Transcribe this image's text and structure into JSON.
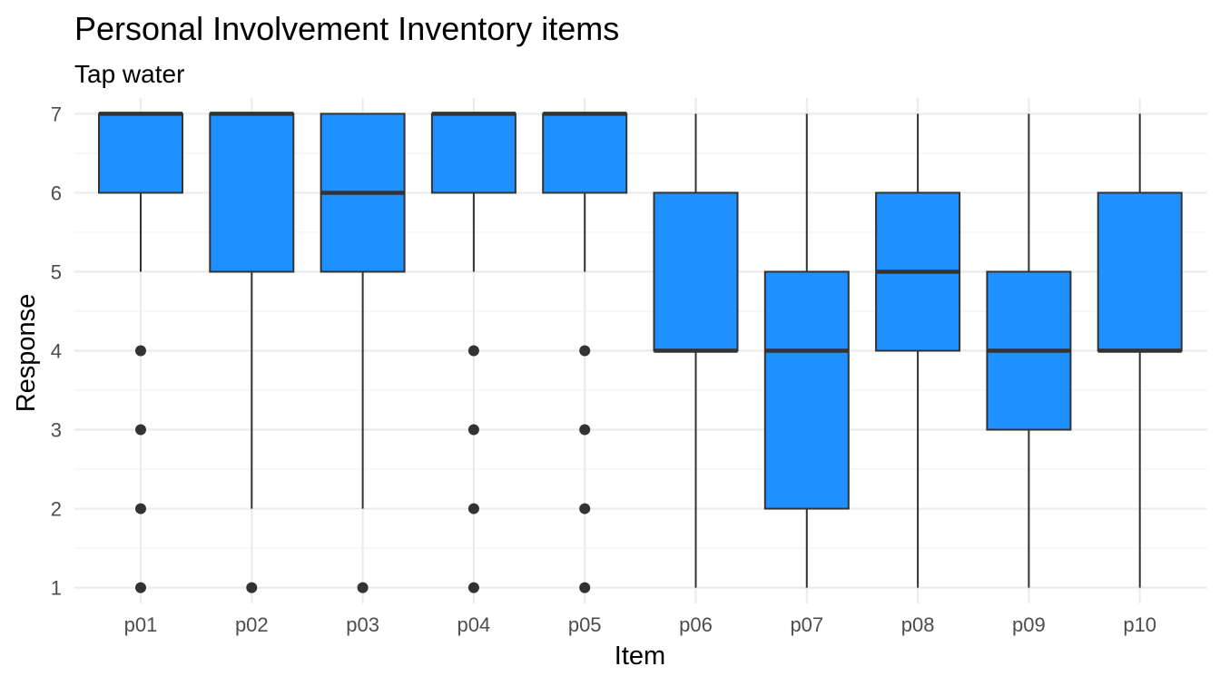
{
  "chart_data": {
    "type": "box",
    "title": "Personal Involvement Inventory items",
    "subtitle": "Tap water",
    "xlabel": "Item",
    "ylabel": "Response",
    "categories": [
      "p01",
      "p02",
      "p03",
      "p04",
      "p05",
      "p06",
      "p07",
      "p08",
      "p09",
      "p10"
    ],
    "y_ticks": [
      1,
      2,
      3,
      4,
      5,
      6,
      7
    ],
    "ylim": [
      0.8,
      7.2
    ],
    "grid": true,
    "fill_color": "#1E90FF",
    "line_color": "#333333",
    "series": [
      {
        "category": "p01",
        "whisker_low": 5,
        "q1": 6,
        "median": 7,
        "q3": 7,
        "whisker_high": 7,
        "outliers": [
          4,
          3,
          2,
          1
        ]
      },
      {
        "category": "p02",
        "whisker_low": 2,
        "q1": 5,
        "median": 7,
        "q3": 7,
        "whisker_high": 7,
        "outliers": [
          1
        ]
      },
      {
        "category": "p03",
        "whisker_low": 2,
        "q1": 5,
        "median": 6,
        "q3": 7,
        "whisker_high": 7,
        "outliers": [
          1
        ]
      },
      {
        "category": "p04",
        "whisker_low": 5,
        "q1": 6,
        "median": 7,
        "q3": 7,
        "whisker_high": 7,
        "outliers": [
          4,
          3,
          2,
          1
        ]
      },
      {
        "category": "p05",
        "whisker_low": 5,
        "q1": 6,
        "median": 7,
        "q3": 7,
        "whisker_high": 7,
        "outliers": [
          4,
          3,
          2,
          1
        ]
      },
      {
        "category": "p06",
        "whisker_low": 1,
        "q1": 4,
        "median": 4,
        "q3": 6,
        "whisker_high": 7,
        "outliers": []
      },
      {
        "category": "p07",
        "whisker_low": 1,
        "q1": 2,
        "median": 4,
        "q3": 5,
        "whisker_high": 7,
        "outliers": []
      },
      {
        "category": "p08",
        "whisker_low": 1,
        "q1": 4,
        "median": 5,
        "q3": 6,
        "whisker_high": 7,
        "outliers": []
      },
      {
        "category": "p09",
        "whisker_low": 1,
        "q1": 3,
        "median": 4,
        "q3": 5,
        "whisker_high": 7,
        "outliers": []
      },
      {
        "category": "p10",
        "whisker_low": 1,
        "q1": 4,
        "median": 4,
        "q3": 6,
        "whisker_high": 7,
        "outliers": []
      }
    ]
  }
}
